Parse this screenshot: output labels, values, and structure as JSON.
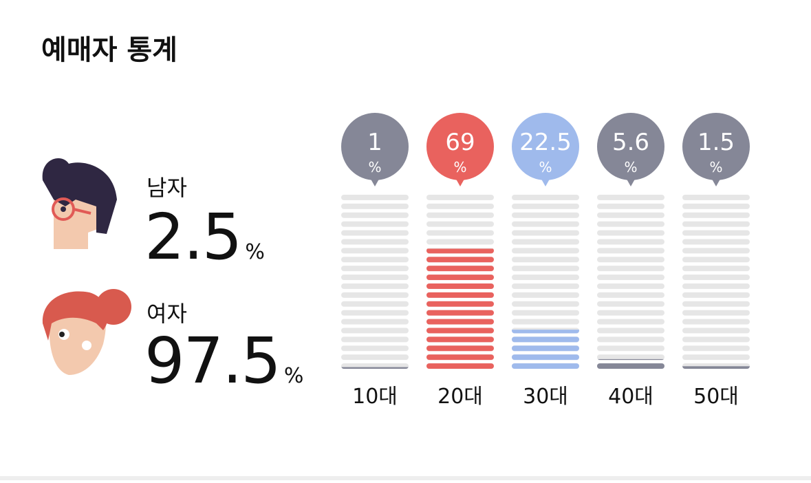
{
  "title": "예매자 통계",
  "gender": [
    {
      "label": "남자",
      "value": 2.5,
      "unit": "%"
    },
    {
      "label": "여자",
      "value": 97.5,
      "unit": "%"
    }
  ],
  "chart_data": {
    "type": "bar",
    "categories": [
      "10대",
      "20대",
      "30대",
      "40대",
      "50대"
    ],
    "values": [
      1,
      69,
      22.5,
      5.6,
      1.5
    ],
    "unit": "%",
    "colors": [
      "#858797",
      "#e9625e",
      "#9fbaec",
      "#858797",
      "#858797"
    ],
    "ylim": [
      0,
      100
    ]
  }
}
